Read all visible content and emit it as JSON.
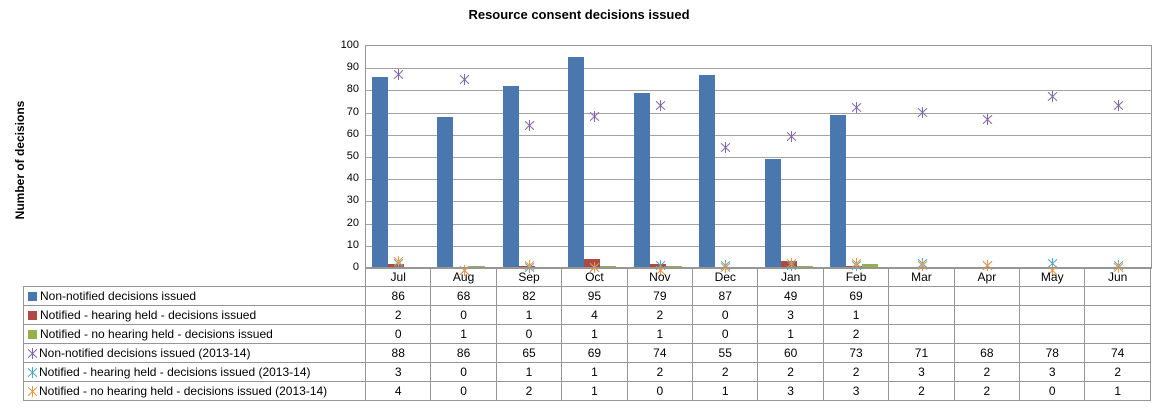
{
  "chart_data": {
    "type": "bar",
    "title": "Resource consent decisions issued",
    "ylabel": "Number of decisions",
    "categories": [
      "Jul",
      "Aug",
      "Sep",
      "Oct",
      "Nov",
      "Dec",
      "Jan",
      "Feb",
      "Mar",
      "Apr",
      "May",
      "Jun"
    ],
    "ylim": [
      0,
      100
    ],
    "ytick_step": 10,
    "grid": true,
    "legend_position": "data-table-left",
    "data_table_shown": true,
    "series": [
      {
        "name": "Non-notified decisions issued",
        "type": "bar",
        "marker": "square",
        "color": "#4a77ae",
        "values": [
          86,
          68,
          82,
          95,
          79,
          87,
          49,
          69,
          null,
          null,
          null,
          null
        ]
      },
      {
        "name": "Notified - hearing held - decisions issued",
        "type": "bar",
        "marker": "square",
        "color": "#ac4a43",
        "values": [
          2,
          0,
          1,
          4,
          2,
          0,
          3,
          1,
          null,
          null,
          null,
          null
        ]
      },
      {
        "name": "Notified - no hearing held - decisions issued",
        "type": "bar",
        "marker": "square",
        "color": "#96af4f",
        "values": [
          0,
          1,
          0,
          1,
          1,
          0,
          1,
          2,
          null,
          null,
          null,
          null
        ]
      },
      {
        "name": "Non-notified decisions issued (2013-14)",
        "type": "line-markers",
        "marker": "star",
        "color": "#8168a8",
        "values": [
          88,
          86,
          65,
          69,
          74,
          55,
          60,
          73,
          71,
          68,
          78,
          74
        ]
      },
      {
        "name": "Notified - hearing held - decisions issued  (2013-14)",
        "type": "line-markers",
        "marker": "star",
        "color": "#4fa7c4",
        "values": [
          3,
          0,
          1,
          1,
          2,
          2,
          2,
          2,
          3,
          2,
          3,
          2
        ]
      },
      {
        "name": "Notified - no hearing held - decisions issued  (2013-14)",
        "type": "line-markers",
        "marker": "star",
        "color": "#eb9545",
        "values": [
          4,
          0,
          2,
          1,
          0,
          1,
          3,
          3,
          2,
          2,
          0,
          1
        ]
      }
    ]
  }
}
